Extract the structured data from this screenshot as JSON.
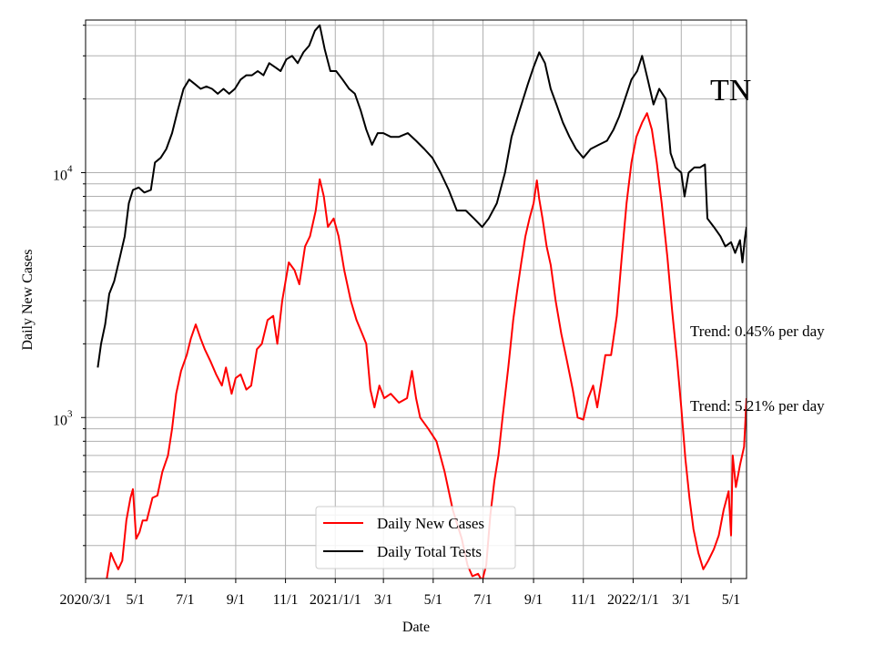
{
  "chart_data": {
    "type": "line",
    "title": "TN",
    "xlabel": "Date",
    "ylabel": "Daily New Cases",
    "y_scale": "log",
    "ylim": [
      220,
      42000
    ],
    "xlim": [
      "2020-03-01",
      "2022-05-20"
    ],
    "grid": true,
    "legend_position": "bottom-center",
    "x_ticks": [
      {
        "date": "2020-03-01",
        "label": "2020/3/1"
      },
      {
        "date": "2020-05-01",
        "label": "5/1"
      },
      {
        "date": "2020-07-01",
        "label": "7/1"
      },
      {
        "date": "2020-09-01",
        "label": "9/1"
      },
      {
        "date": "2020-11-01",
        "label": "11/1"
      },
      {
        "date": "2021-01-01",
        "label": "2021/1/1"
      },
      {
        "date": "2021-03-01",
        "label": "3/1"
      },
      {
        "date": "2021-05-01",
        "label": "5/1"
      },
      {
        "date": "2021-07-01",
        "label": "7/1"
      },
      {
        "date": "2021-09-01",
        "label": "9/1"
      },
      {
        "date": "2021-11-01",
        "label": "11/1"
      },
      {
        "date": "2022-01-01",
        "label": "2022/1/1"
      },
      {
        "date": "2022-03-01",
        "label": "3/1"
      },
      {
        "date": "2022-05-01",
        "label": "5/1"
      }
    ],
    "y_ticks": [
      {
        "value": 1000,
        "base": "10",
        "exp": "3"
      },
      {
        "value": 10000,
        "base": "10",
        "exp": "4"
      }
    ],
    "annotations": [
      {
        "text": "Trend: 0.45% per day"
      },
      {
        "text": "Trend: 5.21% per day"
      }
    ],
    "series": [
      {
        "name": "Daily New Cases",
        "color": "#ff0000",
        "points": [
          [
            "2020-03-27",
            220
          ],
          [
            "2020-04-01",
            280
          ],
          [
            "2020-04-05",
            260
          ],
          [
            "2020-04-10",
            240
          ],
          [
            "2020-04-15",
            260
          ],
          [
            "2020-04-20",
            380
          ],
          [
            "2020-04-25",
            470
          ],
          [
            "2020-04-28",
            510
          ],
          [
            "2020-05-02",
            320
          ],
          [
            "2020-05-06",
            340
          ],
          [
            "2020-05-10",
            380
          ],
          [
            "2020-05-15",
            380
          ],
          [
            "2020-05-22",
            470
          ],
          [
            "2020-05-28",
            480
          ],
          [
            "2020-06-03",
            600
          ],
          [
            "2020-06-10",
            700
          ],
          [
            "2020-06-15",
            900
          ],
          [
            "2020-06-20",
            1250
          ],
          [
            "2020-06-26",
            1550
          ],
          [
            "2020-07-03",
            1800
          ],
          [
            "2020-07-08",
            2100
          ],
          [
            "2020-07-14",
            2400
          ],
          [
            "2020-07-20",
            2100
          ],
          [
            "2020-07-25",
            1900
          ],
          [
            "2020-08-01",
            1700
          ],
          [
            "2020-08-08",
            1500
          ],
          [
            "2020-08-15",
            1350
          ],
          [
            "2020-08-20",
            1600
          ],
          [
            "2020-08-27",
            1250
          ],
          [
            "2020-09-01",
            1450
          ],
          [
            "2020-09-07",
            1500
          ],
          [
            "2020-09-14",
            1300
          ],
          [
            "2020-09-20",
            1350
          ],
          [
            "2020-09-27",
            1900
          ],
          [
            "2020-10-03",
            2000
          ],
          [
            "2020-10-10",
            2500
          ],
          [
            "2020-10-17",
            2600
          ],
          [
            "2020-10-22",
            2000
          ],
          [
            "2020-10-28",
            3000
          ],
          [
            "2020-11-05",
            4300
          ],
          [
            "2020-11-12",
            4000
          ],
          [
            "2020-11-18",
            3500
          ],
          [
            "2020-11-25",
            5000
          ],
          [
            "2020-12-01",
            5500
          ],
          [
            "2020-12-08",
            7000
          ],
          [
            "2020-12-13",
            9400
          ],
          [
            "2020-12-18",
            8000
          ],
          [
            "2020-12-23",
            6000
          ],
          [
            "2020-12-30",
            6500
          ],
          [
            "2021-01-05",
            5500
          ],
          [
            "2021-01-12",
            4000
          ],
          [
            "2021-01-20",
            3000
          ],
          [
            "2021-01-27",
            2500
          ],
          [
            "2021-02-03",
            2200
          ],
          [
            "2021-02-08",
            2000
          ],
          [
            "2021-02-13",
            1300
          ],
          [
            "2021-02-18",
            1100
          ],
          [
            "2021-02-24",
            1350
          ],
          [
            "2021-03-02",
            1200
          ],
          [
            "2021-03-10",
            1250
          ],
          [
            "2021-03-20",
            1150
          ],
          [
            "2021-03-30",
            1200
          ],
          [
            "2021-04-05",
            1550
          ],
          [
            "2021-04-10",
            1200
          ],
          [
            "2021-04-15",
            1000
          ],
          [
            "2021-04-25",
            900
          ],
          [
            "2021-05-05",
            800
          ],
          [
            "2021-05-15",
            600
          ],
          [
            "2021-05-25",
            420
          ],
          [
            "2021-06-05",
            320
          ],
          [
            "2021-06-12",
            250
          ],
          [
            "2021-06-18",
            225
          ],
          [
            "2021-06-25",
            230
          ],
          [
            "2021-06-30",
            215
          ],
          [
            "2021-07-05",
            250
          ],
          [
            "2021-07-10",
            400
          ],
          [
            "2021-07-15",
            550
          ],
          [
            "2021-07-20",
            700
          ],
          [
            "2021-07-25",
            1000
          ],
          [
            "2021-08-01",
            1600
          ],
          [
            "2021-08-07",
            2500
          ],
          [
            "2021-08-12",
            3300
          ],
          [
            "2021-08-17",
            4300
          ],
          [
            "2021-08-22",
            5500
          ],
          [
            "2021-08-27",
            6500
          ],
          [
            "2021-09-01",
            7500
          ],
          [
            "2021-09-05",
            9300
          ],
          [
            "2021-09-08",
            7800
          ],
          [
            "2021-09-12",
            6500
          ],
          [
            "2021-09-17",
            5000
          ],
          [
            "2021-09-22",
            4200
          ],
          [
            "2021-09-28",
            3000
          ],
          [
            "2021-10-05",
            2200
          ],
          [
            "2021-10-12",
            1700
          ],
          [
            "2021-10-19",
            1300
          ],
          [
            "2021-10-25",
            1000
          ],
          [
            "2021-11-01",
            980
          ],
          [
            "2021-11-07",
            1200
          ],
          [
            "2021-11-13",
            1350
          ],
          [
            "2021-11-18",
            1100
          ],
          [
            "2021-11-23",
            1400
          ],
          [
            "2021-11-28",
            1800
          ],
          [
            "2021-12-05",
            1800
          ],
          [
            "2021-12-12",
            2600
          ],
          [
            "2021-12-18",
            4500
          ],
          [
            "2021-12-24",
            7500
          ],
          [
            "2021-12-30",
            11000
          ],
          [
            "2022-01-05",
            14000
          ],
          [
            "2022-01-12",
            16000
          ],
          [
            "2022-01-18",
            17500
          ],
          [
            "2022-01-24",
            15000
          ],
          [
            "2022-01-30",
            11000
          ],
          [
            "2022-02-05",
            7500
          ],
          [
            "2022-02-12",
            4500
          ],
          [
            "2022-02-18",
            2700
          ],
          [
            "2022-02-24",
            1700
          ],
          [
            "2022-03-01",
            1100
          ],
          [
            "2022-03-06",
            680
          ],
          [
            "2022-03-11",
            470
          ],
          [
            "2022-03-16",
            350
          ],
          [
            "2022-03-22",
            280
          ],
          [
            "2022-03-28",
            240
          ],
          [
            "2022-04-03",
            260
          ],
          [
            "2022-04-10",
            290
          ],
          [
            "2022-04-16",
            330
          ],
          [
            "2022-04-22",
            420
          ],
          [
            "2022-04-28",
            500
          ],
          [
            "2022-05-01",
            330
          ],
          [
            "2022-05-03",
            700
          ],
          [
            "2022-05-07",
            520
          ],
          [
            "2022-05-12",
            640
          ],
          [
            "2022-05-17",
            760
          ],
          [
            "2022-05-20",
            1200
          ]
        ]
      },
      {
        "name": "Daily Total Tests",
        "color": "#000000",
        "points": [
          [
            "2020-03-16",
            1600
          ],
          [
            "2020-03-20",
            2000
          ],
          [
            "2020-03-25",
            2400
          ],
          [
            "2020-03-30",
            3200
          ],
          [
            "2020-04-05",
            3600
          ],
          [
            "2020-04-12",
            4500
          ],
          [
            "2020-04-18",
            5500
          ],
          [
            "2020-04-23",
            7500
          ],
          [
            "2020-04-28",
            8500
          ],
          [
            "2020-05-05",
            8700
          ],
          [
            "2020-05-12",
            8300
          ],
          [
            "2020-05-20",
            8500
          ],
          [
            "2020-05-25",
            11000
          ],
          [
            "2020-06-01",
            11500
          ],
          [
            "2020-06-08",
            12500
          ],
          [
            "2020-06-15",
            14500
          ],
          [
            "2020-06-22",
            18000
          ],
          [
            "2020-06-29",
            22000
          ],
          [
            "2020-07-06",
            24000
          ],
          [
            "2020-07-13",
            23000
          ],
          [
            "2020-07-20",
            22000
          ],
          [
            "2020-07-27",
            22500
          ],
          [
            "2020-08-03",
            22000
          ],
          [
            "2020-08-10",
            21000
          ],
          [
            "2020-08-17",
            22000
          ],
          [
            "2020-08-24",
            21000
          ],
          [
            "2020-08-31",
            22000
          ],
          [
            "2020-09-07",
            24000
          ],
          [
            "2020-09-14",
            25000
          ],
          [
            "2020-09-21",
            25000
          ],
          [
            "2020-09-28",
            26000
          ],
          [
            "2020-10-05",
            25000
          ],
          [
            "2020-10-12",
            28000
          ],
          [
            "2020-10-19",
            27000
          ],
          [
            "2020-10-26",
            26000
          ],
          [
            "2020-11-02",
            29000
          ],
          [
            "2020-11-09",
            30000
          ],
          [
            "2020-11-16",
            28000
          ],
          [
            "2020-11-23",
            31000
          ],
          [
            "2020-11-30",
            33000
          ],
          [
            "2020-12-07",
            38000
          ],
          [
            "2020-12-13",
            40000
          ],
          [
            "2020-12-19",
            32000
          ],
          [
            "2020-12-26",
            26000
          ],
          [
            "2021-01-02",
            26000
          ],
          [
            "2021-01-10",
            24000
          ],
          [
            "2021-01-18",
            22000
          ],
          [
            "2021-01-25",
            21000
          ],
          [
            "2021-02-01",
            18000
          ],
          [
            "2021-02-08",
            15000
          ],
          [
            "2021-02-15",
            13000
          ],
          [
            "2021-02-22",
            14500
          ],
          [
            "2021-03-01",
            14500
          ],
          [
            "2021-03-10",
            14000
          ],
          [
            "2021-03-20",
            14000
          ],
          [
            "2021-03-31",
            14500
          ],
          [
            "2021-04-10",
            13500
          ],
          [
            "2021-04-20",
            12500
          ],
          [
            "2021-04-30",
            11500
          ],
          [
            "2021-05-10",
            10000
          ],
          [
            "2021-05-20",
            8500
          ],
          [
            "2021-05-30",
            7000
          ],
          [
            "2021-06-10",
            7000
          ],
          [
            "2021-06-20",
            6500
          ],
          [
            "2021-06-30",
            6000
          ],
          [
            "2021-07-08",
            6500
          ],
          [
            "2021-07-18",
            7500
          ],
          [
            "2021-07-28",
            10000
          ],
          [
            "2021-08-05",
            14000
          ],
          [
            "2021-08-15",
            18000
          ],
          [
            "2021-08-25",
            23000
          ],
          [
            "2021-09-01",
            27000
          ],
          [
            "2021-09-08",
            31000
          ],
          [
            "2021-09-15",
            28000
          ],
          [
            "2021-09-22",
            22000
          ],
          [
            "2021-09-29",
            19000
          ],
          [
            "2021-10-07",
            16000
          ],
          [
            "2021-10-15",
            14000
          ],
          [
            "2021-10-23",
            12500
          ],
          [
            "2021-11-01",
            11500
          ],
          [
            "2021-11-10",
            12500
          ],
          [
            "2021-11-20",
            13000
          ],
          [
            "2021-11-30",
            13500
          ],
          [
            "2021-12-08",
            15000
          ],
          [
            "2021-12-15",
            17000
          ],
          [
            "2021-12-22",
            20000
          ],
          [
            "2021-12-30",
            24000
          ],
          [
            "2022-01-06",
            26000
          ],
          [
            "2022-01-12",
            30000
          ],
          [
            "2022-01-19",
            24000
          ],
          [
            "2022-01-26",
            19000
          ],
          [
            "2022-02-02",
            22000
          ],
          [
            "2022-02-10",
            20000
          ],
          [
            "2022-02-16",
            12000
          ],
          [
            "2022-02-22",
            10500
          ],
          [
            "2022-03-01",
            10000
          ],
          [
            "2022-03-05",
            8000
          ],
          [
            "2022-03-10",
            10000
          ],
          [
            "2022-03-17",
            10500
          ],
          [
            "2022-03-24",
            10500
          ],
          [
            "2022-03-30",
            10800
          ],
          [
            "2022-04-02",
            6500
          ],
          [
            "2022-04-10",
            6000
          ],
          [
            "2022-04-18",
            5500
          ],
          [
            "2022-04-24",
            5000
          ],
          [
            "2022-05-01",
            5200
          ],
          [
            "2022-05-06",
            4700
          ],
          [
            "2022-05-12",
            5300
          ],
          [
            "2022-05-15",
            4300
          ],
          [
            "2022-05-18",
            5400
          ],
          [
            "2022-05-20",
            6000
          ]
        ]
      }
    ]
  }
}
